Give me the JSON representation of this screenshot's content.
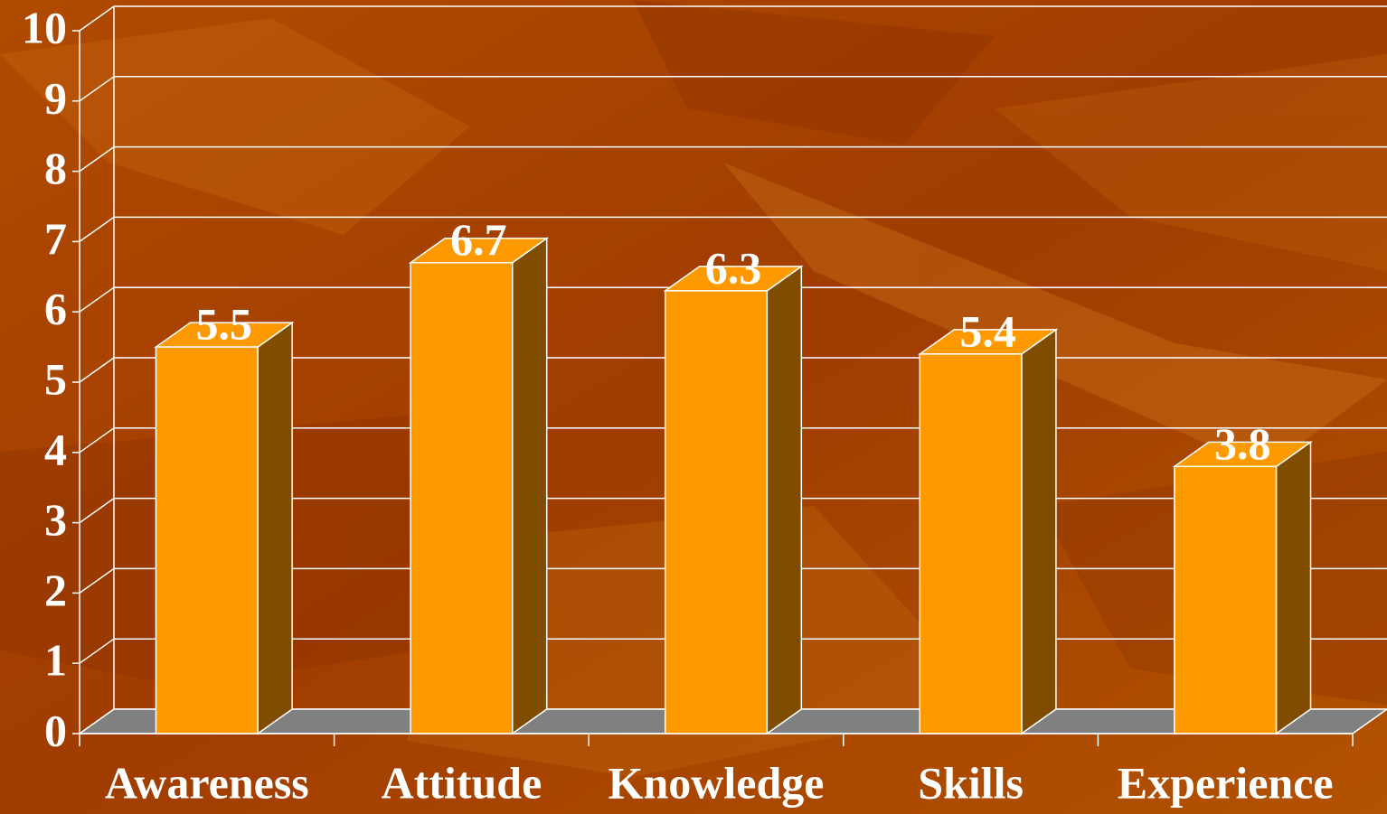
{
  "chart_data": {
    "type": "bar",
    "categories": [
      "Awareness",
      "Attitude",
      "Knowledge",
      "Skills",
      "Experience"
    ],
    "values": [
      5.5,
      6.7,
      6.3,
      5.4,
      3.8
    ],
    "color": "#ff9900",
    "side_color": "#7f4c00",
    "floor_color": "#808080",
    "ylim": [
      0,
      10
    ],
    "yticks": [
      0,
      1,
      2,
      3,
      4,
      5,
      6,
      7,
      8,
      9,
      10
    ],
    "grid": true
  }
}
